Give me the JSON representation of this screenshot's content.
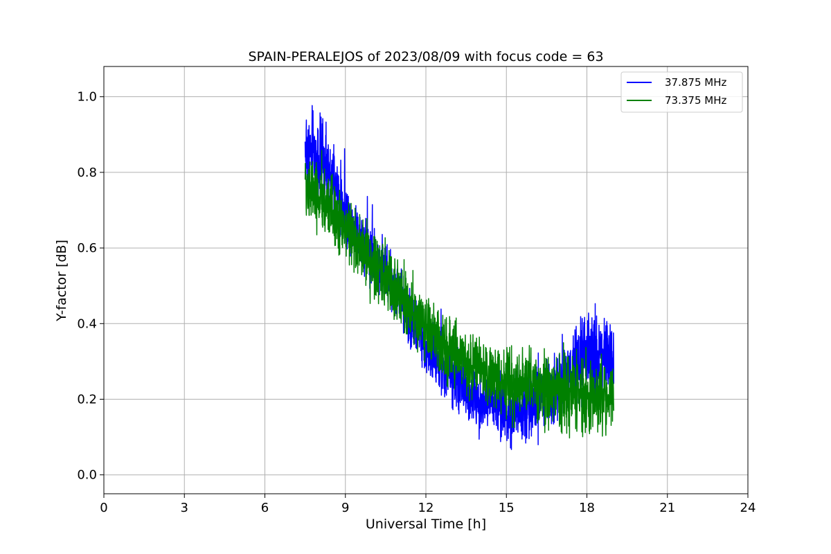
{
  "chart_data": {
    "type": "line",
    "title": "SPAIN-PERALEJOS of 2023/08/09 with focus code = 63",
    "xlabel": "Universal Time [h]",
    "ylabel": "Y-factor [dB]",
    "xlim": [
      0,
      24
    ],
    "ylim": [
      -0.05,
      1.08
    ],
    "xticks": [
      0,
      3,
      6,
      9,
      12,
      15,
      18,
      21,
      24
    ],
    "xtick_labels": [
      "0",
      "3",
      "6",
      "9",
      "12",
      "15",
      "18",
      "21",
      "24"
    ],
    "yticks": [
      0.0,
      0.2,
      0.4,
      0.6,
      0.8,
      1.0
    ],
    "ytick_labels": [
      "0.0",
      "0.2",
      "0.4",
      "0.6",
      "0.8",
      "1.0"
    ],
    "grid": true,
    "legend_position": "top-right",
    "series": [
      {
        "name": "37.875 MHz",
        "color": "#0000ff",
        "x": [
          7.5,
          8,
          8.5,
          9,
          9.5,
          10,
          10.5,
          11,
          11.5,
          12,
          12.5,
          13,
          13.5,
          14,
          14.5,
          15,
          15.5,
          16,
          16.5,
          17,
          17.5,
          18,
          18.5,
          19
        ],
        "y": [
          0.86,
          0.84,
          0.78,
          0.69,
          0.64,
          0.58,
          0.54,
          0.47,
          0.4,
          0.34,
          0.29,
          0.25,
          0.22,
          0.19,
          0.19,
          0.17,
          0.18,
          0.19,
          0.21,
          0.25,
          0.28,
          0.3,
          0.32,
          0.31
        ],
        "spread": [
          0.17,
          0.14,
          0.12,
          0.11,
          0.1,
          0.1,
          0.1,
          0.1,
          0.1,
          0.1,
          0.1,
          0.1,
          0.1,
          0.1,
          0.1,
          0.12,
          0.12,
          0.12,
          0.12,
          0.13,
          0.14,
          0.15,
          0.16,
          0.15
        ]
      },
      {
        "name": "73.375 MHz",
        "color": "#008000",
        "x": [
          7.5,
          8,
          8.5,
          9,
          9.5,
          10,
          10.5,
          11,
          11.5,
          12,
          12.5,
          13,
          13.5,
          14,
          14.5,
          15,
          15.5,
          16,
          16.5,
          17,
          17.5,
          18,
          18.5,
          19
        ],
        "y": [
          0.77,
          0.73,
          0.7,
          0.65,
          0.61,
          0.56,
          0.52,
          0.48,
          0.43,
          0.39,
          0.35,
          0.32,
          0.3,
          0.28,
          0.26,
          0.25,
          0.24,
          0.24,
          0.23,
          0.22,
          0.22,
          0.21,
          0.21,
          0.21
        ],
        "spread": [
          0.12,
          0.11,
          0.11,
          0.11,
          0.11,
          0.11,
          0.11,
          0.11,
          0.11,
          0.11,
          0.11,
          0.11,
          0.11,
          0.11,
          0.11,
          0.12,
          0.12,
          0.12,
          0.12,
          0.12,
          0.13,
          0.13,
          0.13,
          0.13
        ]
      }
    ]
  }
}
